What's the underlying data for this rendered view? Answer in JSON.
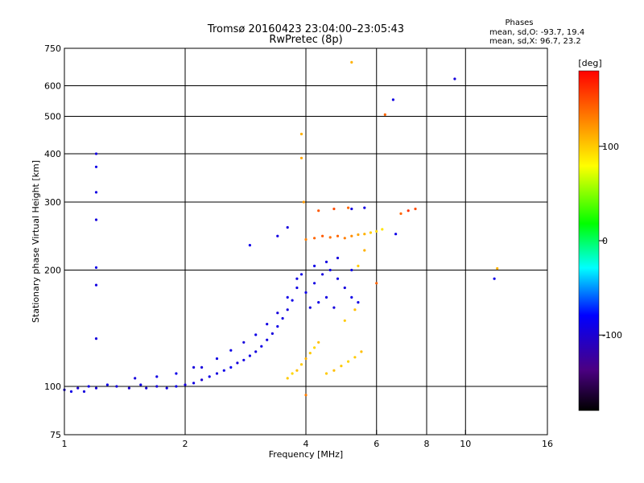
{
  "chart_data": {
    "type": "scatter",
    "title_line1": "Tromsø 20160423 23:04:00–23:05:43",
    "title_line2": "RwPretec (8p)",
    "stats": {
      "heading": "Phases",
      "line_o": "mean, sd,O: -93.7, 19.4",
      "line_x": "mean, sd,X:  96.7, 23.2"
    },
    "xlabel": "Frequency [MHz]",
    "ylabel": "Stationary phase Virtual Height [km]",
    "xscale": "log",
    "yscale": "log",
    "xlim": [
      1,
      16
    ],
    "ylim": [
      75,
      750
    ],
    "x_ticks": [
      1,
      2,
      4,
      6,
      8,
      10,
      16
    ],
    "x_tick_labels": [
      "1",
      "2",
      "4",
      "6",
      "8",
      "10",
      "16"
    ],
    "x_grid": [
      2,
      4,
      6,
      8,
      10
    ],
    "y_ticks": [
      75,
      100,
      200,
      300,
      400,
      500,
      600,
      750
    ],
    "y_tick_labels": [
      "75",
      "100",
      "200",
      "300",
      "400",
      "500",
      "600",
      "750"
    ],
    "y_grid": [
      100,
      200,
      300,
      400,
      500,
      600
    ],
    "grid": true,
    "colorbar": {
      "label": "[deg]",
      "range": [
        -180,
        180
      ],
      "ticks": [
        100,
        0,
        -100
      ],
      "tick_labels": [
        "100",
        "0",
        "-100"
      ],
      "colors": [
        "#000000",
        "#4b0082",
        "#0000ff",
        "#00ffff",
        "#00ff00",
        "#ffff00",
        "#ff0000"
      ]
    },
    "series": [
      {
        "points": [
          [
            1.0,
            98,
            -95
          ],
          [
            1.04,
            97,
            -90
          ],
          [
            1.08,
            99,
            -100
          ],
          [
            1.12,
            97,
            -95
          ],
          [
            1.15,
            100,
            -92
          ],
          [
            1.2,
            99,
            -98
          ],
          [
            1.28,
            101,
            -90
          ],
          [
            1.35,
            100,
            -95
          ],
          [
            1.45,
            99,
            -100
          ],
          [
            1.55,
            101,
            -92
          ],
          [
            1.6,
            99,
            -98
          ],
          [
            1.7,
            100,
            -96
          ],
          [
            1.8,
            99,
            -94
          ],
          [
            1.9,
            100,
            -90
          ],
          [
            2.0,
            101,
            -95
          ],
          [
            2.1,
            102,
            -92
          ],
          [
            2.2,
            104,
            -100
          ],
          [
            2.3,
            106,
            -90
          ],
          [
            2.4,
            108,
            -95
          ],
          [
            2.5,
            110,
            -90
          ],
          [
            2.6,
            112,
            -85
          ],
          [
            2.7,
            115,
            -95
          ],
          [
            2.8,
            117,
            -92
          ],
          [
            2.9,
            120,
            -90
          ],
          [
            3.0,
            123,
            -95
          ],
          [
            3.1,
            127,
            -90
          ],
          [
            3.2,
            132,
            -92
          ],
          [
            3.3,
            137,
            -95
          ],
          [
            3.4,
            143,
            -90
          ],
          [
            3.5,
            150,
            -92
          ],
          [
            3.6,
            158,
            -95
          ],
          [
            3.7,
            167,
            -90
          ],
          [
            3.8,
            180,
            -92
          ],
          [
            3.9,
            195,
            -90
          ],
          [
            2.2,
            112,
            -95
          ],
          [
            2.4,
            118,
            -92
          ],
          [
            2.6,
            124,
            -90
          ],
          [
            2.8,
            130,
            -95
          ],
          [
            3.0,
            136,
            -90
          ],
          [
            3.2,
            145,
            -92
          ],
          [
            3.4,
            155,
            -95
          ],
          [
            3.6,
            170,
            -90
          ],
          [
            3.8,
            190,
            -92
          ],
          [
            1.5,
            105,
            -95
          ],
          [
            1.7,
            106,
            -92
          ],
          [
            1.9,
            108,
            -90
          ],
          [
            2.1,
            112,
            -95
          ],
          [
            2.9,
            232,
            -90
          ],
          [
            3.4,
            245,
            -92
          ],
          [
            3.6,
            258,
            -95
          ],
          [
            1.2,
            400,
            -95
          ],
          [
            1.2,
            370,
            -90
          ],
          [
            1.2,
            318,
            -92
          ],
          [
            1.2,
            270,
            -95
          ],
          [
            1.2,
            203,
            -90
          ],
          [
            1.2,
            183,
            -92
          ],
          [
            1.2,
            133,
            -95
          ],
          [
            4.0,
            175,
            -90
          ],
          [
            4.2,
            185,
            -92
          ],
          [
            4.4,
            195,
            -95
          ],
          [
            4.6,
            200,
            -90
          ],
          [
            4.8,
            190,
            -92
          ],
          [
            5.0,
            180,
            -95
          ],
          [
            5.2,
            170,
            -90
          ],
          [
            5.4,
            165,
            -92
          ],
          [
            4.1,
            160,
            -95
          ],
          [
            4.3,
            165,
            -90
          ],
          [
            4.5,
            170,
            -92
          ],
          [
            4.7,
            160,
            -95
          ],
          [
            4.2,
            205,
            -90
          ],
          [
            4.5,
            210,
            -92
          ],
          [
            4.8,
            215,
            -95
          ],
          [
            5.2,
            200,
            -90
          ],
          [
            5.6,
            290,
            -92
          ],
          [
            5.2,
            288,
            -95
          ],
          [
            6.7,
            248,
            -90
          ],
          [
            6.6,
            552,
            -92
          ],
          [
            9.4,
            625,
            -95
          ],
          [
            11.8,
            190,
            -90
          ]
        ]
      },
      {
        "points": [
          [
            3.9,
            450,
            110
          ],
          [
            3.9,
            390,
            115
          ],
          [
            3.95,
            300,
            120
          ],
          [
            3.6,
            105,
            100
          ],
          [
            3.7,
            108,
            95
          ],
          [
            3.8,
            110,
            105
          ],
          [
            3.9,
            114,
            100
          ],
          [
            4.0,
            118,
            110
          ],
          [
            4.1,
            122,
            100
          ],
          [
            4.2,
            126,
            95
          ],
          [
            4.3,
            130,
            105
          ],
          [
            4.5,
            108,
            100
          ],
          [
            4.7,
            110,
            105
          ],
          [
            4.9,
            113,
            100
          ],
          [
            5.1,
            116,
            95
          ],
          [
            5.3,
            119,
            100
          ],
          [
            5.5,
            123,
            105
          ],
          [
            5.0,
            148,
            100
          ],
          [
            5.3,
            158,
            105
          ],
          [
            4.0,
            240,
            130
          ],
          [
            4.2,
            242,
            140
          ],
          [
            4.4,
            245,
            145
          ],
          [
            4.6,
            243,
            135
          ],
          [
            4.8,
            245,
            140
          ],
          [
            5.0,
            242,
            130
          ],
          [
            5.2,
            245,
            125
          ],
          [
            5.4,
            247,
            115
          ],
          [
            5.6,
            248,
            110
          ],
          [
            5.8,
            250,
            100
          ],
          [
            6.0,
            252,
            95
          ],
          [
            6.2,
            255,
            90
          ],
          [
            4.3,
            285,
            145
          ],
          [
            4.7,
            288,
            150
          ],
          [
            5.1,
            290,
            140
          ],
          [
            7.2,
            285,
            160
          ],
          [
            7.5,
            288,
            150
          ],
          [
            6.9,
            280,
            140
          ],
          [
            5.2,
            690,
            110
          ],
          [
            6.3,
            505,
            140
          ],
          [
            4.0,
            95,
            130
          ],
          [
            12.0,
            202,
            110
          ],
          [
            5.6,
            225,
            110
          ],
          [
            5.4,
            205,
            100
          ],
          [
            6.0,
            185,
            140
          ]
        ]
      }
    ]
  }
}
